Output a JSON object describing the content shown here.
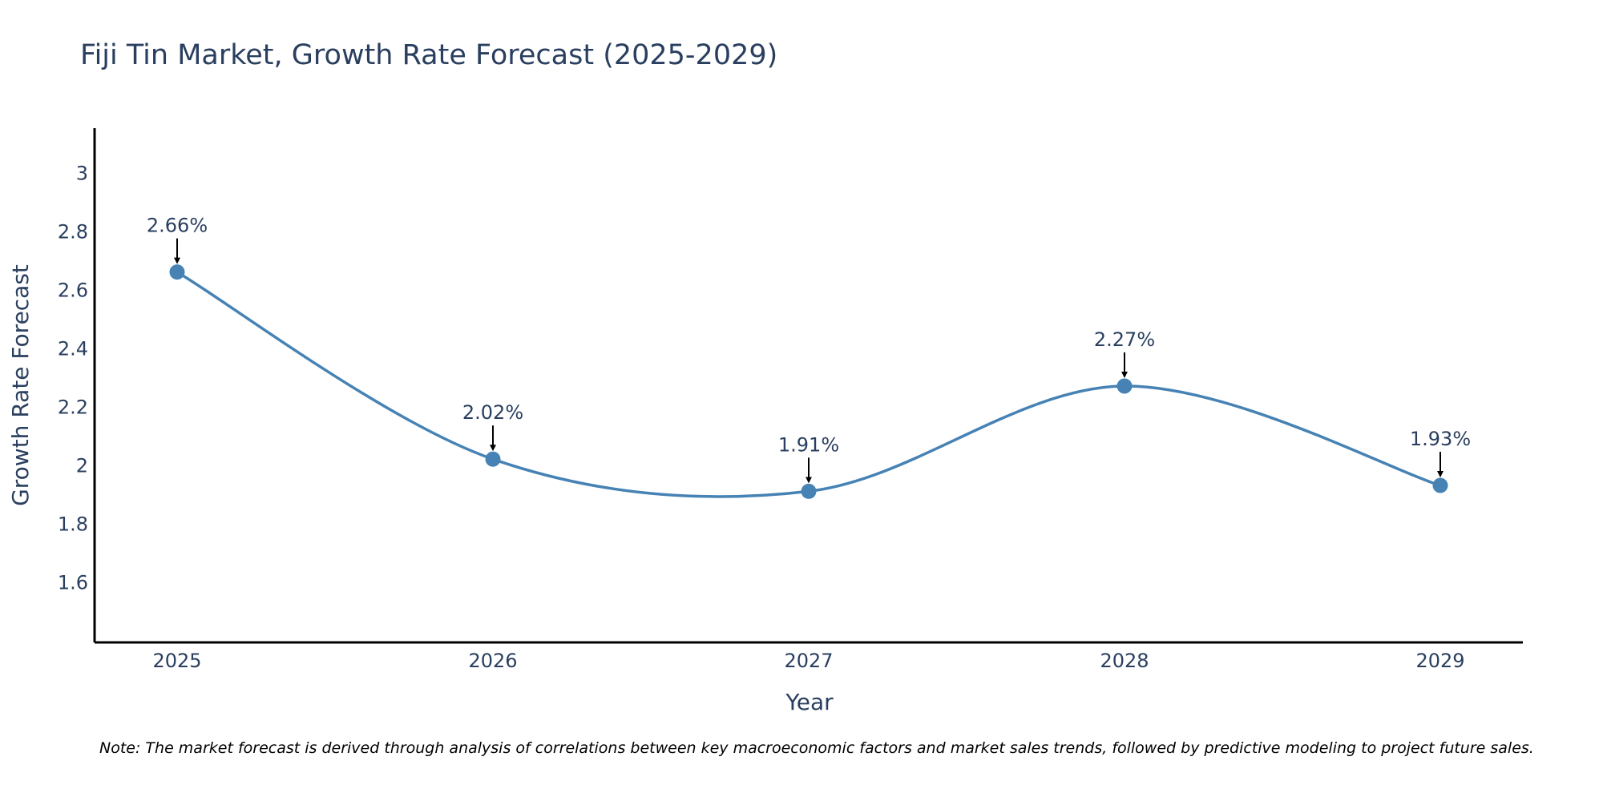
{
  "colors": {
    "line": "#4682b4",
    "marker": "#4682b4",
    "text": "#2a3f5f",
    "axis": "#000000",
    "arrow": "#000000"
  },
  "chart_data": {
    "type": "line",
    "title": "Fiji Tin Market, Growth Rate Forecast (2025-2029)",
    "xlabel": "Year",
    "ylabel": "Growth Rate Forecast",
    "x": [
      "2025",
      "2026",
      "2027",
      "2028",
      "2029"
    ],
    "series": [
      {
        "name": "Growth Rate Forecast",
        "values": [
          2.66,
          2.02,
          1.91,
          2.27,
          1.93
        ],
        "labels": [
          "2.66%",
          "2.02%",
          "1.91%",
          "2.27%",
          "1.93%"
        ]
      }
    ],
    "ylim": [
      1.4,
      3.15
    ],
    "yticks": [
      1.6,
      1.8,
      2,
      2.2,
      2.4,
      2.6,
      2.8,
      3
    ],
    "ytick_labels": [
      "1.6",
      "1.8",
      "2",
      "2.2",
      "2.4",
      "2.6",
      "2.8",
      "3"
    ],
    "grid": false,
    "line_shape": "spline"
  },
  "note": "Note: The market forecast is derived through analysis of correlations between key macroeconomic factors and market sales trends, followed by predictive modeling to project future sales."
}
